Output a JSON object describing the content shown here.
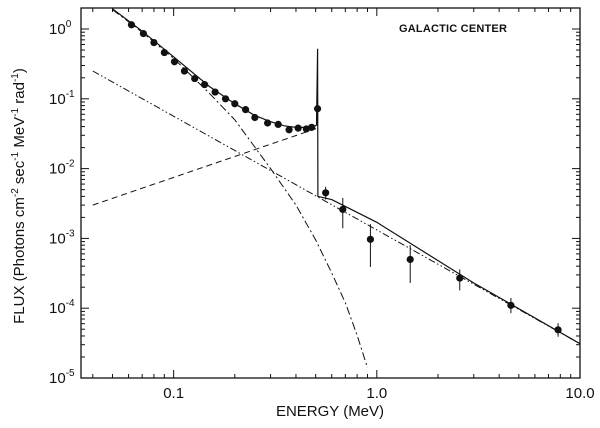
{
  "chart_data": {
    "type": "scatter",
    "title": "",
    "annotation": "GALACTIC CENTER",
    "xlabel": "ENERGY (MeV)",
    "ylabel_parts": {
      "a": "FLUX  (Photons cm",
      "a_sup": "-2",
      "b": " sec",
      "b_sup": "-1",
      "c": " MeV",
      "c_sup": "-1",
      "d": " rad",
      "d_sup": "-1",
      "e": ")"
    },
    "xscale": "log",
    "yscale": "log",
    "xlim": [
      0.035,
      10.0
    ],
    "ylim": [
      1e-05,
      2.0
    ],
    "grid": false,
    "x_ticks": [
      {
        "value": 0.1,
        "label": "0.1"
      },
      {
        "value": 1.0,
        "label": "1.0"
      },
      {
        "value": 10.0,
        "label": "10.0"
      }
    ],
    "y_ticks": [
      {
        "value": 1.0,
        "base": "10",
        "exp": "0"
      },
      {
        "value": 0.1,
        "base": "10",
        "exp": "-1"
      },
      {
        "value": 0.01,
        "base": "10",
        "exp": "-2"
      },
      {
        "value": 0.001,
        "base": "10",
        "exp": "-3"
      },
      {
        "value": 0.0001,
        "base": "10",
        "exp": "-4"
      },
      {
        "value": 1e-05,
        "base": "10",
        "exp": "-5"
      }
    ],
    "points": [
      {
        "x": 0.062,
        "y": 1.15
      },
      {
        "x": 0.071,
        "y": 0.86
      },
      {
        "x": 0.08,
        "y": 0.64
      },
      {
        "x": 0.09,
        "y": 0.46
      },
      {
        "x": 0.101,
        "y": 0.34
      },
      {
        "x": 0.113,
        "y": 0.25
      },
      {
        "x": 0.127,
        "y": 0.195
      },
      {
        "x": 0.142,
        "y": 0.16
      },
      {
        "x": 0.16,
        "y": 0.125
      },
      {
        "x": 0.18,
        "y": 0.1
      },
      {
        "x": 0.2,
        "y": 0.085
      },
      {
        "x": 0.226,
        "y": 0.07
      },
      {
        "x": 0.251,
        "y": 0.054
      },
      {
        "x": 0.29,
        "y": 0.045
      },
      {
        "x": 0.327,
        "y": 0.043
      },
      {
        "x": 0.37,
        "y": 0.036
      },
      {
        "x": 0.41,
        "y": 0.038
      },
      {
        "x": 0.45,
        "y": 0.037
      },
      {
        "x": 0.478,
        "y": 0.039
      },
      {
        "x": 0.511,
        "y": 0.072,
        "err_lo": 0.045,
        "err_hi": 0.105
      },
      {
        "x": 0.56,
        "y": 0.0045,
        "err_lo": 0.0036,
        "err_hi": 0.0055
      },
      {
        "x": 0.68,
        "y": 0.0026,
        "err_lo": 0.0014,
        "err_hi": 0.0038
      },
      {
        "x": 0.93,
        "y": 0.00097,
        "err_lo": 0.00039,
        "err_hi": 0.0016
      },
      {
        "x": 1.46,
        "y": 0.0005,
        "err_lo": 0.00023,
        "err_hi": 0.0008
      },
      {
        "x": 2.56,
        "y": 0.00027,
        "err_lo": 0.00018,
        "err_hi": 0.00036
      },
      {
        "x": 4.57,
        "y": 0.00011,
        "err_lo": 8.5e-05,
        "err_hi": 0.00014
      },
      {
        "x": 7.8,
        "y": 4.9e-05,
        "err_lo": 3.9e-05,
        "err_hi": 6.1e-05
      }
    ],
    "model_components": [
      {
        "style": "dash-dot-dot",
        "from": {
          "x": 0.04,
          "y": 0.25
        },
        "to": {
          "x": 10.0,
          "y": 3.1e-05
        }
      },
      {
        "style": "dashed",
        "from": {
          "x": 0.04,
          "y": 0.003
        },
        "to": {
          "x": 0.511,
          "y": 0.038
        }
      },
      {
        "style": "dash-dot",
        "curve": [
          {
            "x": 0.05,
            "y": 1.9
          },
          {
            "x": 0.07,
            "y": 0.9
          },
          {
            "x": 0.1,
            "y": 0.38
          },
          {
            "x": 0.15,
            "y": 0.12
          },
          {
            "x": 0.2,
            "y": 0.05
          },
          {
            "x": 0.3,
            "y": 0.01
          },
          {
            "x": 0.4,
            "y": 0.003
          },
          {
            "x": 0.5,
            "y": 0.00095
          },
          {
            "x": 0.6,
            "y": 0.00032
          },
          {
            "x": 0.7,
            "y": 0.00012
          },
          {
            "x": 0.8,
            "y": 4.1e-05
          },
          {
            "x": 0.9,
            "y": 1.4e-05
          }
        ]
      },
      {
        "style": "solid",
        "curve": [
          {
            "x": 0.05,
            "y": 1.95
          },
          {
            "x": 0.07,
            "y": 0.93
          },
          {
            "x": 0.1,
            "y": 0.4
          },
          {
            "x": 0.15,
            "y": 0.15
          },
          {
            "x": 0.2,
            "y": 0.085
          },
          {
            "x": 0.25,
            "y": 0.058
          },
          {
            "x": 0.3,
            "y": 0.047
          },
          {
            "x": 0.35,
            "y": 0.041
          },
          {
            "x": 0.4,
            "y": 0.039
          },
          {
            "x": 0.45,
            "y": 0.039
          },
          {
            "x": 0.49,
            "y": 0.04
          },
          {
            "x": 0.505,
            "y": 0.042
          },
          {
            "x": 0.511,
            "y": 0.52
          },
          {
            "x": 0.513,
            "y": 0.004
          },
          {
            "x": 0.6,
            "y": 0.0036
          },
          {
            "x": 1.0,
            "y": 0.0017
          },
          {
            "x": 3.0,
            "y": 0.00023
          },
          {
            "x": 10.0,
            "y": 3.1e-05
          }
        ]
      }
    ],
    "colors": {
      "ink": "#111111",
      "background": "#ffffff"
    }
  }
}
